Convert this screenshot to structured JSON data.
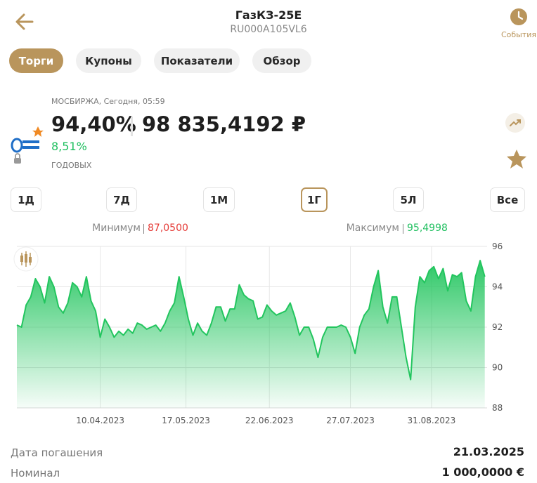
{
  "header": {
    "title": "ГазКЗ-25E",
    "subtitle": "RU000A105VL6",
    "events": "События"
  },
  "tabs": [
    "Торги",
    "Купоны",
    "Показатели",
    "Обзор"
  ],
  "quote": {
    "source": "МОСБИРЖА, Сегодня, 05:59",
    "price_pct": "94,40%",
    "price": "98 835,4192 ₽",
    "yield": "8,51%",
    "yield_label": "ГОДОВЫХ"
  },
  "periods": [
    "1Д",
    "7Д",
    "1М",
    "1Г",
    "5Л",
    "Все"
  ],
  "range": {
    "min_label": "Минимум",
    "min": "87,0500",
    "max_label": "Максимум",
    "max": "95,4998"
  },
  "chart_data": {
    "type": "area",
    "color": "#22c55e",
    "x": [
      "05.03.2023",
      "07.03.2023",
      "09.03.2023",
      "11.03.2023",
      "13.03.2023",
      "15.03.2023",
      "17.03.2023",
      "19.03.2023",
      "21.03.2023",
      "23.03.2023",
      "25.03.2023",
      "27.03.2023",
      "29.03.2023",
      "31.03.2023",
      "02.04.2023",
      "04.04.2023",
      "06.04.2023",
      "08.04.2023",
      "10.04.2023",
      "12.04.2023",
      "14.04.2023",
      "16.04.2023",
      "18.04.2023",
      "20.04.2023",
      "22.04.2023",
      "24.04.2023",
      "26.04.2023",
      "28.04.2023",
      "30.04.2023",
      "02.05.2023",
      "04.05.2023",
      "06.05.2023",
      "08.05.2023",
      "10.05.2023",
      "12.05.2023",
      "14.05.2023",
      "16.05.2023",
      "18.05.2023",
      "20.05.2023",
      "22.05.2023",
      "24.05.2023",
      "26.05.2023",
      "28.05.2023",
      "30.05.2023",
      "01.06.2023",
      "03.06.2023",
      "05.06.2023",
      "07.06.2023",
      "09.06.2023",
      "11.06.2023",
      "13.06.2023",
      "15.06.2023",
      "17.06.2023",
      "19.06.2023",
      "21.06.2023",
      "23.06.2023",
      "25.06.2023",
      "27.06.2023",
      "29.06.2023",
      "01.07.2023",
      "03.07.2023",
      "05.07.2023",
      "07.07.2023",
      "09.07.2023",
      "11.07.2023",
      "13.07.2023",
      "15.07.2023",
      "17.07.2023",
      "19.07.2023",
      "21.07.2023",
      "23.07.2023",
      "25.07.2023",
      "27.07.2023",
      "29.07.2023",
      "31.07.2023",
      "02.08.2023",
      "04.08.2023",
      "06.08.2023",
      "08.08.2023",
      "10.08.2023",
      "12.08.2023",
      "14.08.2023",
      "16.08.2023",
      "18.08.2023",
      "20.08.2023",
      "22.08.2023",
      "24.08.2023",
      "26.08.2023",
      "28.08.2023",
      "30.08.2023",
      "01.09.2023",
      "03.09.2023",
      "05.09.2023",
      "07.09.2023",
      "09.09.2023",
      "11.09.2023",
      "13.09.2023",
      "15.09.2023",
      "17.09.2023",
      "19.09.2023",
      "21.09.2023",
      "23.09.2023"
    ],
    "values": [
      92.1,
      92.0,
      93.1,
      93.5,
      94.4,
      94.0,
      93.2,
      94.5,
      94.0,
      93.0,
      92.7,
      93.2,
      94.2,
      94.0,
      93.5,
      94.5,
      93.3,
      92.8,
      91.5,
      92.4,
      92.0,
      91.5,
      91.8,
      91.6,
      91.9,
      91.7,
      92.2,
      92.1,
      91.9,
      92.0,
      92.1,
      91.8,
      92.2,
      92.8,
      93.2,
      94.5,
      93.5,
      92.4,
      91.6,
      92.2,
      91.8,
      91.6,
      92.2,
      93.0,
      93.0,
      92.3,
      92.9,
      92.9,
      94.1,
      93.6,
      93.4,
      93.3,
      92.4,
      92.5,
      93.1,
      92.8,
      92.6,
      92.7,
      92.8,
      93.2,
      92.5,
      91.6,
      92.0,
      92.0,
      91.4,
      90.5,
      91.5,
      92.0,
      92.0,
      92.0,
      92.1,
      92.0,
      91.5,
      90.7,
      92.0,
      92.6,
      92.9,
      94.0,
      94.8,
      93.0,
      92.2,
      93.5,
      93.5,
      92.0,
      90.5,
      89.4,
      93.0,
      94.5,
      94.2,
      94.8,
      95.0,
      94.4,
      94.9,
      93.8,
      94.6,
      94.5,
      94.7,
      93.3,
      92.8,
      94.5,
      95.3,
      94.5
    ],
    "xlim": [
      "05.03.2023",
      "24.09.2023"
    ],
    "xticks": [
      "10.04.2023",
      "17.05.2023",
      "22.06.2023",
      "27.07.2023",
      "31.08.2023"
    ],
    "ylim": [
      88,
      96
    ],
    "yticks": [
      88,
      90,
      92,
      94,
      96
    ],
    "grid": true
  },
  "details": [
    {
      "label": "Дата погашения",
      "value": "21.03.2025"
    },
    {
      "label": "Номинал",
      "value": "1 000,0000 €"
    }
  ]
}
